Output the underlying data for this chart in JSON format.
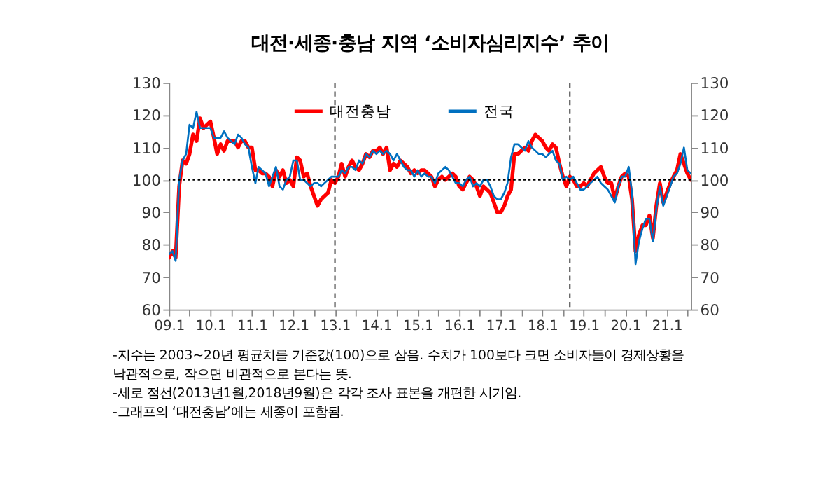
{
  "chart_data": {
    "type": "line",
    "title": "대전·세종·충남 지역 ‘소비자심리지수’ 추이",
    "x": [
      "2009-01",
      "2009-02",
      "2009-03",
      "2009-04",
      "2009-05",
      "2009-06",
      "2009-07",
      "2009-08",
      "2009-09",
      "2009-10",
      "2009-11",
      "2009-12",
      "2010-01",
      "2010-02",
      "2010-03",
      "2010-04",
      "2010-05",
      "2010-06",
      "2010-07",
      "2010-08",
      "2010-09",
      "2010-10",
      "2010-11",
      "2010-12",
      "2011-01",
      "2011-02",
      "2011-03",
      "2011-04",
      "2011-05",
      "2011-06",
      "2011-07",
      "2011-08",
      "2011-09",
      "2011-10",
      "2011-11",
      "2011-12",
      "2012-01",
      "2012-02",
      "2012-03",
      "2012-04",
      "2012-05",
      "2012-06",
      "2012-07",
      "2012-08",
      "2012-09",
      "2012-10",
      "2012-11",
      "2012-12",
      "2013-01",
      "2013-02",
      "2013-03",
      "2013-04",
      "2013-05",
      "2013-06",
      "2013-07",
      "2013-08",
      "2013-09",
      "2013-10",
      "2013-11",
      "2013-12",
      "2014-01",
      "2014-02",
      "2014-03",
      "2014-04",
      "2014-05",
      "2014-06",
      "2014-07",
      "2014-08",
      "2014-09",
      "2014-10",
      "2014-11",
      "2014-12",
      "2015-01",
      "2015-02",
      "2015-03",
      "2015-04",
      "2015-05",
      "2015-06",
      "2015-07",
      "2015-08",
      "2015-09",
      "2015-10",
      "2015-11",
      "2015-12",
      "2016-01",
      "2016-02",
      "2016-03",
      "2016-04",
      "2016-05",
      "2016-06",
      "2016-07",
      "2016-08",
      "2016-09",
      "2016-10",
      "2016-11",
      "2016-12",
      "2017-01",
      "2017-02",
      "2017-03",
      "2017-04",
      "2017-05",
      "2017-06",
      "2017-07",
      "2017-08",
      "2017-09",
      "2017-10",
      "2017-11",
      "2017-12",
      "2018-01",
      "2018-02",
      "2018-03",
      "2018-04",
      "2018-05",
      "2018-06",
      "2018-07",
      "2018-08",
      "2018-09",
      "2018-10",
      "2018-11",
      "2018-12",
      "2019-01",
      "2019-02",
      "2019-03",
      "2019-04",
      "2019-05",
      "2019-06",
      "2019-07",
      "2019-08",
      "2019-09",
      "2019-10",
      "2019-11",
      "2019-12",
      "2020-01",
      "2020-02",
      "2020-03",
      "2020-04",
      "2020-05",
      "2020-06",
      "2020-07",
      "2020-08",
      "2020-09",
      "2020-10",
      "2020-11",
      "2020-12",
      "2021-01",
      "2021-02",
      "2021-03",
      "2021-04",
      "2021-05",
      "2021-06",
      "2021-07",
      "2021-08"
    ],
    "series": [
      {
        "name": "대전충남",
        "color": "#ff0000",
        "values": [
          76,
          78,
          76,
          98,
          106,
          105,
          108,
          114,
          112,
          119,
          116,
          117,
          118,
          113,
          108,
          111,
          109,
          112,
          112,
          112,
          110,
          112,
          112,
          110,
          110,
          103,
          103,
          102,
          102,
          101,
          98,
          103,
          101,
          103,
          99,
          100,
          98,
          107,
          106,
          101,
          102,
          98,
          95,
          92,
          94,
          95,
          96,
          100,
          99,
          101,
          105,
          101,
          104,
          106,
          104,
          103,
          105,
          108,
          107,
          109,
          109,
          110,
          108,
          110,
          103,
          105,
          104,
          106,
          105,
          104,
          102,
          103,
          102,
          103,
          103,
          102,
          101,
          98,
          100,
          101,
          100,
          101,
          102,
          101,
          98,
          97,
          99,
          101,
          100,
          98,
          95,
          98,
          97,
          96,
          93,
          90,
          90,
          92,
          95,
          97,
          108,
          108,
          109,
          110,
          109,
          112,
          114,
          113,
          112,
          110,
          109,
          111,
          110,
          105,
          101,
          98,
          101,
          100,
          98,
          98,
          99,
          98,
          100,
          102,
          103,
          104,
          101,
          99,
          99,
          94,
          98,
          101,
          102,
          101,
          94,
          78,
          83,
          86,
          86,
          89,
          82,
          92,
          99,
          93,
          96,
          99,
          101,
          103,
          108,
          105,
          102,
          100
        ]
      },
      {
        "name": "전국",
        "color": "#0070c0",
        "values": [
          77,
          78,
          75,
          100,
          106,
          108,
          117,
          116,
          121,
          116,
          116,
          116,
          116,
          113,
          113,
          113,
          115,
          113,
          112,
          111,
          114,
          113,
          111,
          110,
          104,
          99,
          104,
          103,
          102,
          98,
          101,
          104,
          98,
          97,
          100,
          101,
          106,
          106,
          100,
          100,
          99,
          98,
          99,
          99,
          98,
          99,
          100,
          101,
          101,
          101,
          103,
          102,
          104,
          104,
          103,
          106,
          105,
          108,
          107,
          109,
          108,
          109,
          108,
          109,
          108,
          106,
          108,
          106,
          104,
          103,
          103,
          101,
          103,
          101,
          102,
          101,
          101,
          99,
          102,
          103,
          104,
          103,
          101,
          99,
          99,
          98,
          100,
          101,
          98,
          99,
          98,
          100,
          100,
          98,
          95,
          94,
          94,
          96,
          99,
          107,
          111,
          111,
          110,
          109,
          112,
          110,
          109,
          108,
          108,
          107,
          108,
          109,
          106,
          105,
          100,
          101,
          100,
          101,
          99,
          97,
          97,
          98,
          99,
          100,
          101,
          99,
          98,
          97,
          95,
          93,
          98,
          101,
          101,
          104,
          96,
          74,
          81,
          85,
          88,
          88,
          81,
          91,
          98,
          92,
          95,
          98,
          101,
          102,
          105,
          110,
          103,
          102
        ]
      }
    ],
    "xlim": [
      "2009-01",
      "2021-08"
    ],
    "xticks": [
      {
        "value": "2009-01",
        "label": "09.1"
      },
      {
        "value": "2009-07",
        "label": null
      },
      {
        "value": "2010-01",
        "label": "10.1"
      },
      {
        "value": "2010-07",
        "label": null
      },
      {
        "value": "2011-01",
        "label": "11.1"
      },
      {
        "value": "2011-07",
        "label": null
      },
      {
        "value": "2012-01",
        "label": "12.1"
      },
      {
        "value": "2012-07",
        "label": null
      },
      {
        "value": "2013-01",
        "label": "13.1"
      },
      {
        "value": "2013-07",
        "label": null
      },
      {
        "value": "2014-01",
        "label": "14.1"
      },
      {
        "value": "2014-07",
        "label": null
      },
      {
        "value": "2015-01",
        "label": "15.1"
      },
      {
        "value": "2015-07",
        "label": null
      },
      {
        "value": "2016-01",
        "label": "16.1"
      },
      {
        "value": "2016-07",
        "label": null
      },
      {
        "value": "2017-01",
        "label": "17.1"
      },
      {
        "value": "2017-07",
        "label": null
      },
      {
        "value": "2018-01",
        "label": "18.1"
      },
      {
        "value": "2018-07",
        "label": null
      },
      {
        "value": "2019-01",
        "label": "19.1"
      },
      {
        "value": "2019-07",
        "label": null
      },
      {
        "value": "2020-01",
        "label": "20.1"
      },
      {
        "value": "2020-07",
        "label": null
      },
      {
        "value": "2021-01",
        "label": "21.1"
      },
      {
        "value": "2021-07",
        "label": null
      }
    ],
    "ylim": [
      60,
      130
    ],
    "yticks": [
      60,
      70,
      80,
      90,
      100,
      110,
      120,
      130
    ],
    "y2lim": [
      60,
      130
    ],
    "y2ticks": [
      60,
      70,
      80,
      90,
      100,
      110,
      120,
      130
    ],
    "ref_lines": [
      {
        "axis": "y",
        "value": 100,
        "line_style": "dotted",
        "color": "#000000"
      },
      {
        "axis": "x",
        "value": "2013-01",
        "line_style": "dashed",
        "color": "#000000"
      },
      {
        "axis": "x",
        "value": "2018-09",
        "line_style": "dashed",
        "color": "#000000"
      }
    ],
    "grid": false,
    "legend": "top",
    "marker": "none",
    "line_style": "solid",
    "annotations": [
      "-지수는 2003~20년 평균치를 기준값(100)으로 삼음. 수치가 100보다 크면 소비자들이 경제상황을\n 낙관적으로, 작으면 비관적으로 본다는 뜻.",
      "-세로 점선(2013년1월,2018년9월)은 각각 조사 표본을 개편한 시기임.",
      "-그래프의 ‘대전충남’에는 세종이 포함됨."
    ]
  }
}
